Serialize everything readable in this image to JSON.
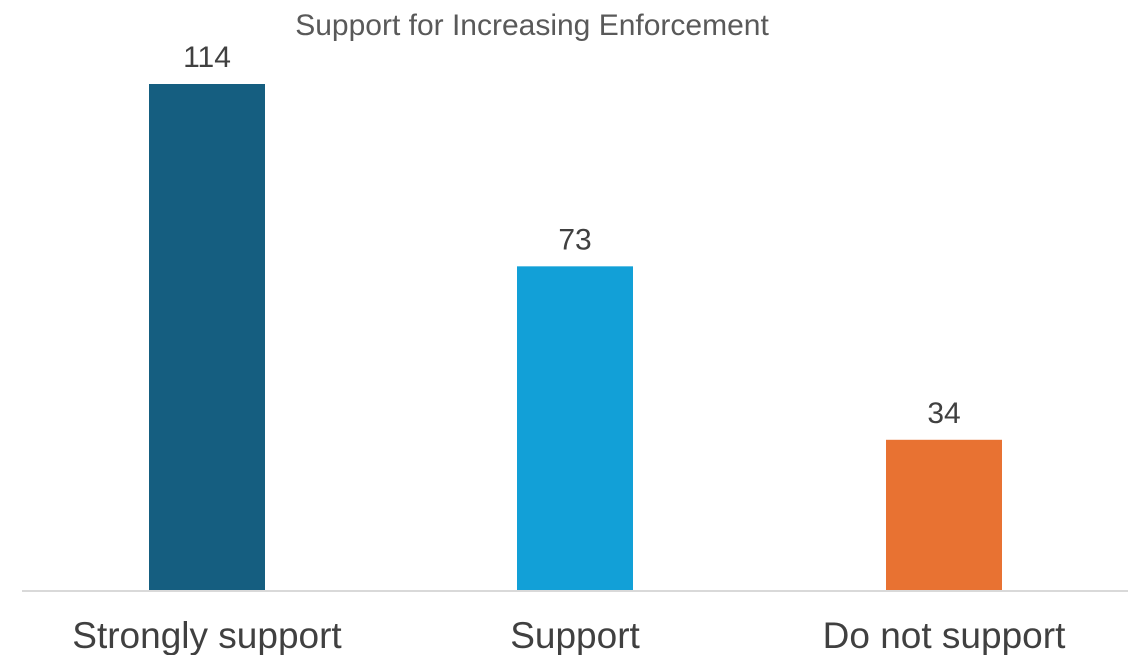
{
  "chart_data": {
    "type": "bar",
    "title": "Support for Increasing Enforcement",
    "categories": [
      "Strongly support",
      "Support",
      "Do not support"
    ],
    "values": [
      114,
      73,
      34
    ],
    "colors": [
      "#155e80",
      "#12a0d7",
      "#e87232"
    ],
    "xlabel": "",
    "ylabel": "",
    "ylim": [
      0,
      114
    ],
    "grid": false,
    "legend": "none",
    "data_labels": true
  }
}
